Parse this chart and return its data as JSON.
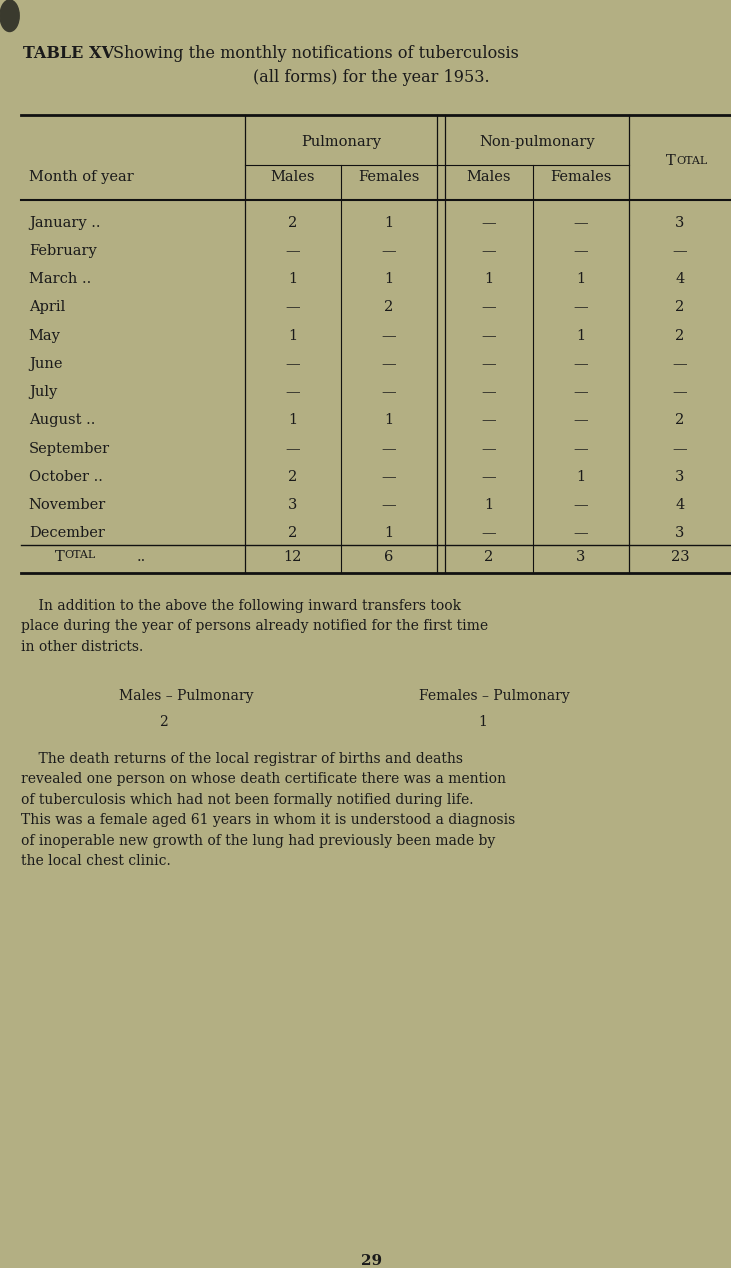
{
  "bg_color": "#b3af83",
  "text_color": "#1a1a1a",
  "title_bold": "TABLE XV",
  "title_normal": "  Showing the monthly notifications of tuberculosis",
  "title_line2": "(all forms) for the year 1953.",
  "col_header_1": "Pulmonary",
  "col_header_2": "Non-pulmonary",
  "col_header_3": "Total",
  "sub_headers": [
    "Males",
    "Females",
    "Males",
    "Females"
  ],
  "row_label": "Month of year",
  "month_labels": [
    [
      "January",
      true
    ],
    [
      "February",
      false
    ],
    [
      "March",
      true
    ],
    [
      "April",
      false
    ],
    [
      "May",
      false
    ],
    [
      "June",
      false
    ],
    [
      "July",
      false
    ],
    [
      "August",
      true
    ],
    [
      "September",
      false
    ],
    [
      "October",
      true
    ],
    [
      "November",
      false
    ],
    [
      "December",
      false
    ]
  ],
  "data": [
    [
      "2",
      "1",
      "—",
      "—",
      "3"
    ],
    [
      "—",
      "—",
      "—",
      "—",
      "—"
    ],
    [
      "1",
      "1",
      "1",
      "1",
      "4"
    ],
    [
      "—",
      "2",
      "—",
      "—",
      "2"
    ],
    [
      "1",
      "—",
      "—",
      "1",
      "2"
    ],
    [
      "—",
      "—",
      "—",
      "—",
      "—"
    ],
    [
      "—",
      "—",
      "—",
      "—",
      "—"
    ],
    [
      "1",
      "1",
      "—",
      "—",
      "2"
    ],
    [
      "—",
      "—",
      "—",
      "—",
      "—"
    ],
    [
      "2",
      "—",
      "—",
      "1",
      "3"
    ],
    [
      "3",
      "—",
      "1",
      "—",
      "4"
    ],
    [
      "2",
      "1",
      "—",
      "—",
      "3"
    ]
  ],
  "total_row": [
    "12",
    "6",
    "2",
    "3",
    "23"
  ],
  "addition_text_1": "    In addition to the above the following inward transfers took",
  "addition_text_2": "place during the year of persons already notified for the first time",
  "addition_text_3": "in other districts.",
  "transfers_label_m": "Males – Pulmonary",
  "transfers_val_m": "2",
  "transfers_label_f": "Females – Pulmonary",
  "transfers_val_f": "1",
  "death_text_1": "    The death returns of the local registrar of births and deaths",
  "death_text_2": "revealed one person on whose death certificate there was a mention",
  "death_text_3": "of tuberculosis which had not been formally notified during life.",
  "death_text_4": "This was a female aged 61 years in whom it is understood a diagnosis",
  "death_text_5": "of inoperable new growth of the lung had previously been made by",
  "death_text_6": "the local chest clinic.",
  "page_number": "29"
}
